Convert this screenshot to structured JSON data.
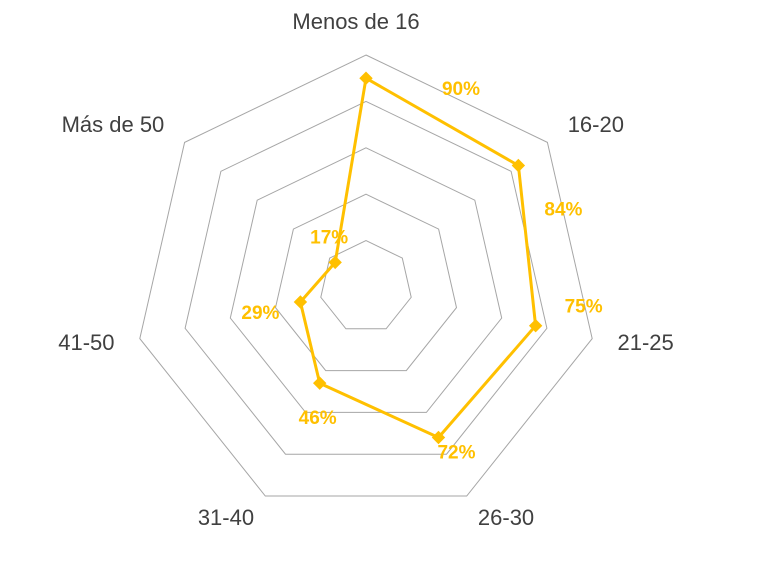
{
  "chart_data": {
    "type": "radar",
    "categories": [
      "Menos de 16",
      "16-20",
      "21-25",
      "26-30",
      "31-40",
      "41-50",
      "Más de 50"
    ],
    "series": [
      {
        "values": [
          90,
          84,
          75,
          72,
          46,
          29,
          17
        ],
        "data_labels": [
          "90%",
          "84%",
          "75%",
          "72%",
          "46%",
          "29%",
          "17%"
        ],
        "color": "#ffc000"
      }
    ],
    "rlim": [
      0,
      100
    ],
    "grid": true,
    "legend": "none"
  }
}
